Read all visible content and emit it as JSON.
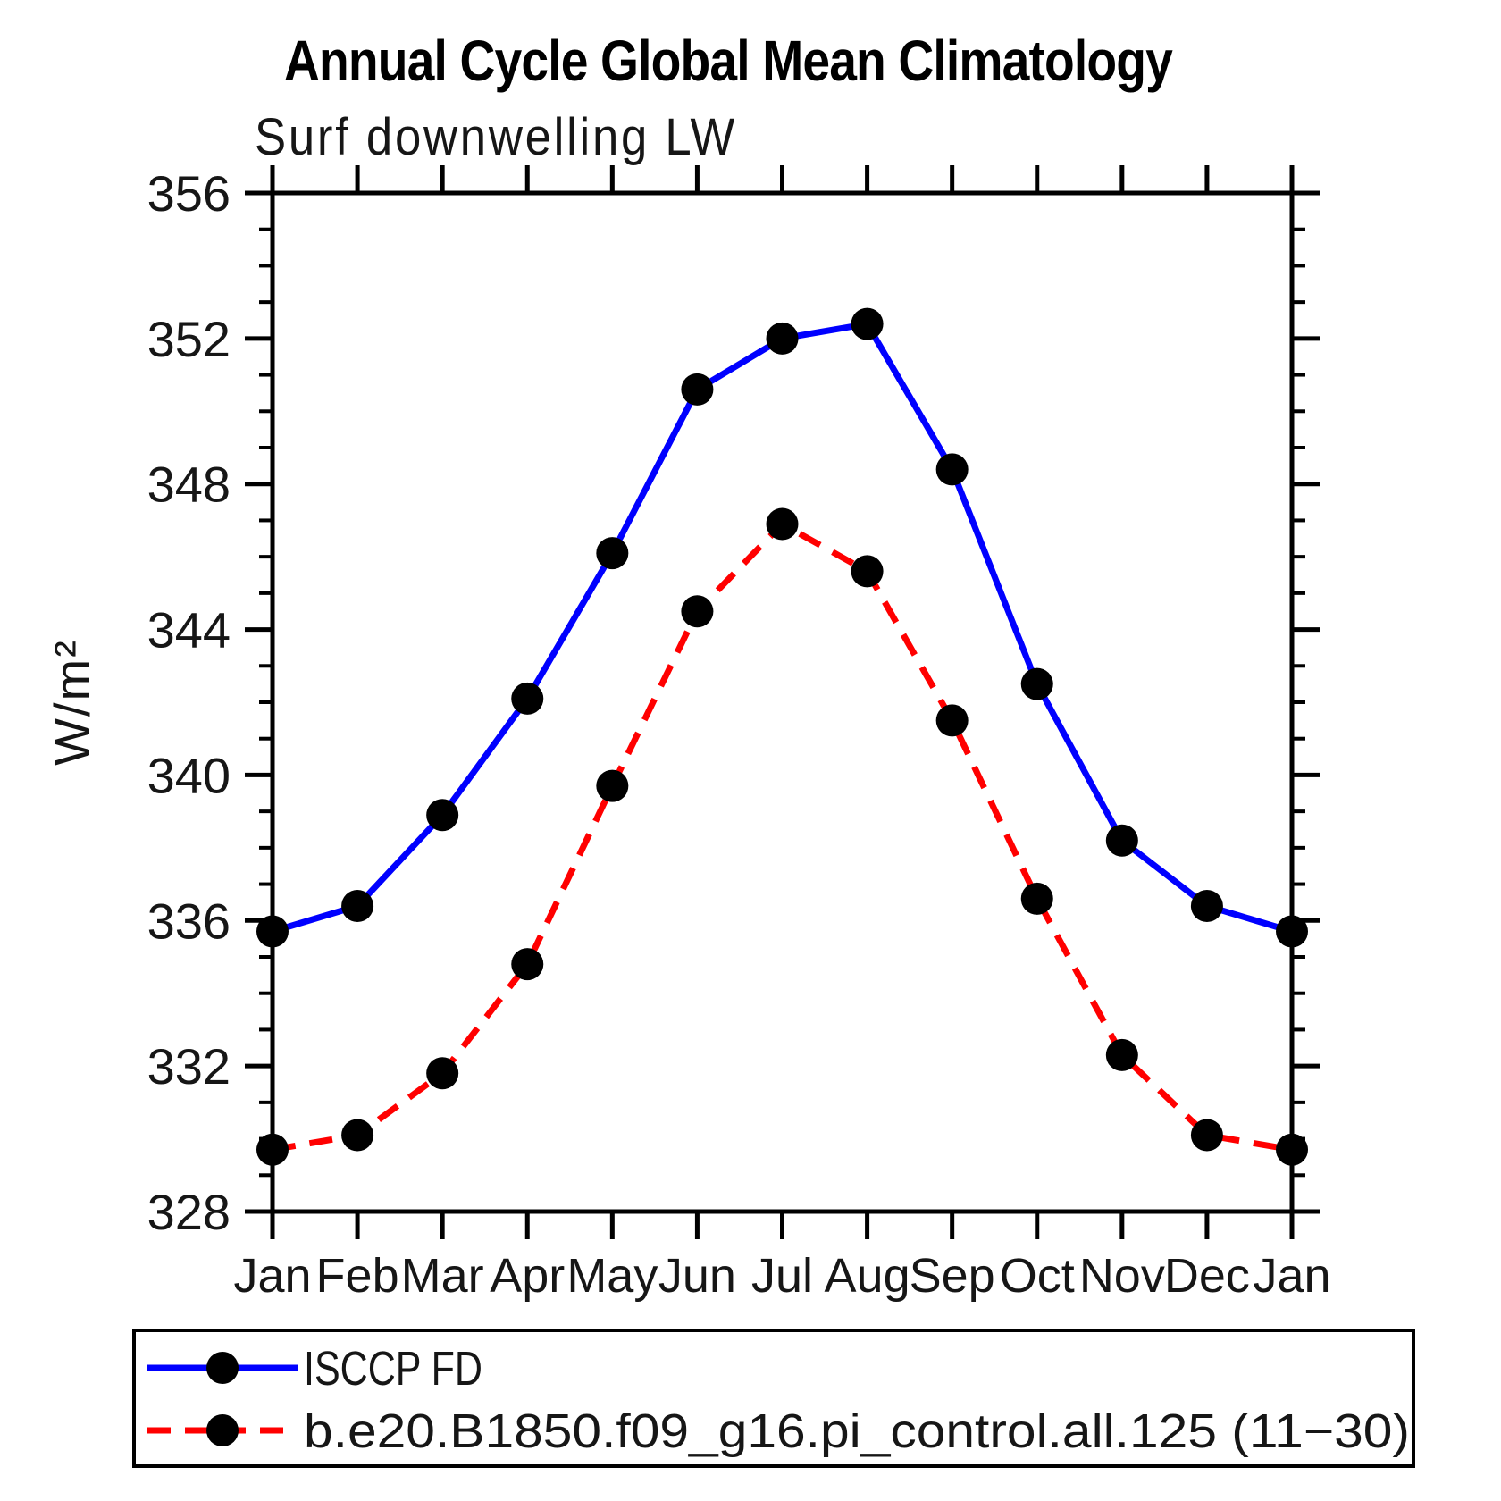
{
  "chart_data": {
    "type": "line",
    "title": "Annual Cycle Global Mean Climatology",
    "subtitle": "Surf downwelling LW",
    "ylabel": "W/m²",
    "categories": [
      "Jan",
      "Feb",
      "Mar",
      "Apr",
      "May",
      "Jun",
      "Jul",
      "Aug",
      "Sep",
      "Oct",
      "Nov",
      "Dec",
      "Jan"
    ],
    "ylim": [
      328,
      356
    ],
    "ytick_major_step": 4,
    "ytick_minor_step": 1,
    "grid": false,
    "legend_position": "bottom-left",
    "marker": "filled-circle",
    "marker_color": "#000000",
    "series": [
      {
        "name": "ISCCP FD",
        "color": "#0000ff",
        "line_style": "solid",
        "values": [
          335.7,
          336.4,
          338.9,
          342.1,
          346.1,
          350.6,
          352.0,
          352.4,
          348.4,
          342.5,
          338.2,
          336.4,
          335.7
        ]
      },
      {
        "name": "b.e20.B1850.f09_g16.pi_control.all.125 (11−30)",
        "color": "#ff0000",
        "line_style": "dashed",
        "values": [
          329.7,
          330.1,
          331.8,
          334.8,
          339.7,
          344.5,
          346.9,
          345.6,
          341.5,
          336.6,
          332.3,
          330.1,
          329.7
        ]
      }
    ]
  }
}
